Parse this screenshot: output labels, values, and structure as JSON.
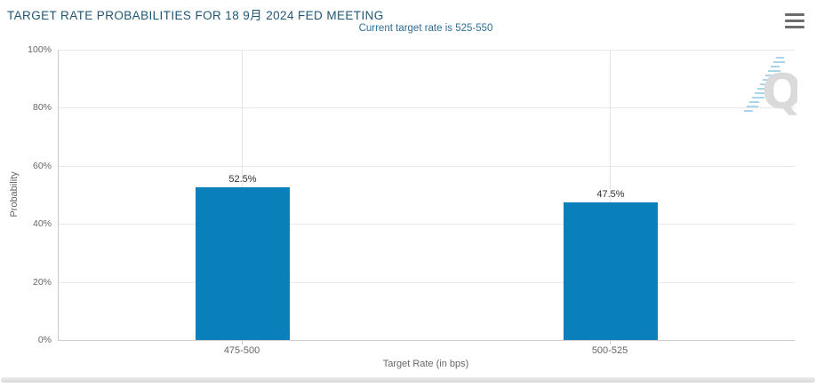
{
  "header": {
    "title": "TARGET RATE PROBABILITIES FOR 18 9月 2024 FED MEETING",
    "subtitle": "Current target rate is 525-550"
  },
  "chart_data": {
    "type": "bar",
    "title": "TARGET RATE PROBABILITIES FOR 18 9月 2024 FED MEETING",
    "subtitle": "Current target rate is 525-550",
    "categories": [
      "475-500",
      "500-525"
    ],
    "values": [
      52.5,
      47.5
    ],
    "value_labels": [
      "52.5%",
      "47.5%"
    ],
    "xlabel": "Target Rate (in bps)",
    "ylabel": "Probability",
    "ylim": [
      0,
      100
    ],
    "ytick_labels": [
      "0%",
      "20%",
      "40%",
      "60%",
      "80%",
      "100%"
    ],
    "grid": true,
    "legend_position": "none",
    "bar_color": "#0a80ba"
  },
  "icons": {
    "menu": "hamburger-icon",
    "watermark": "quikstrike-q-logo"
  },
  "colors": {
    "title_text": "#1f5673",
    "subtitle_text": "#2e6e96",
    "bar": "#0a80ba",
    "axis_text": "#666666",
    "gridline": "#e8e8e8"
  }
}
